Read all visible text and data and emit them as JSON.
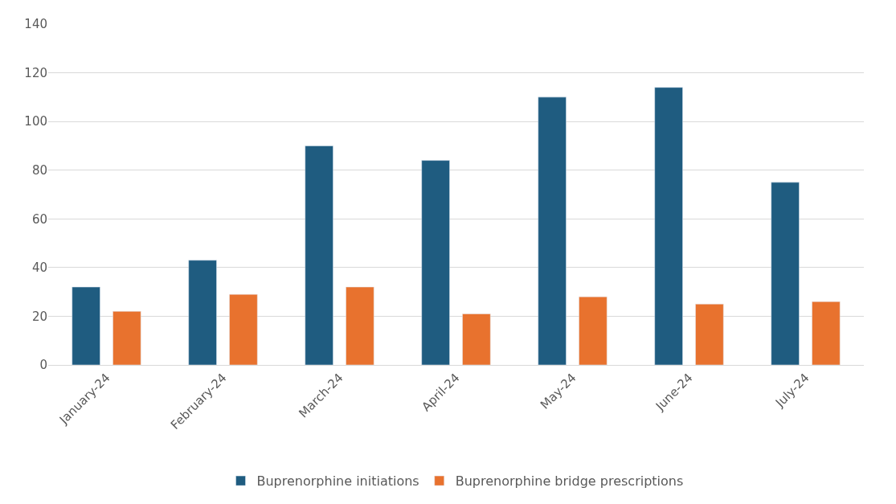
{
  "chart_data": {
    "type": "bar",
    "categories": [
      "January-24",
      "February-24",
      "March-24",
      "April-24",
      "May-24",
      "June-24",
      "July-24"
    ],
    "series": [
      {
        "name": "Buprenorphine initiations",
        "color": "#1f5c80",
        "values": [
          32,
          43,
          90,
          84,
          110,
          114,
          75
        ]
      },
      {
        "name": "Buprenorphine bridge prescriptions",
        "color": "#e8722e",
        "values": [
          22,
          29,
          32,
          21,
          28,
          25,
          26
        ]
      }
    ],
    "ylim": [
      0,
      140
    ],
    "yticks": [
      0,
      20,
      40,
      60,
      80,
      100,
      120,
      140
    ],
    "grid": "y",
    "legend": "bottom"
  }
}
